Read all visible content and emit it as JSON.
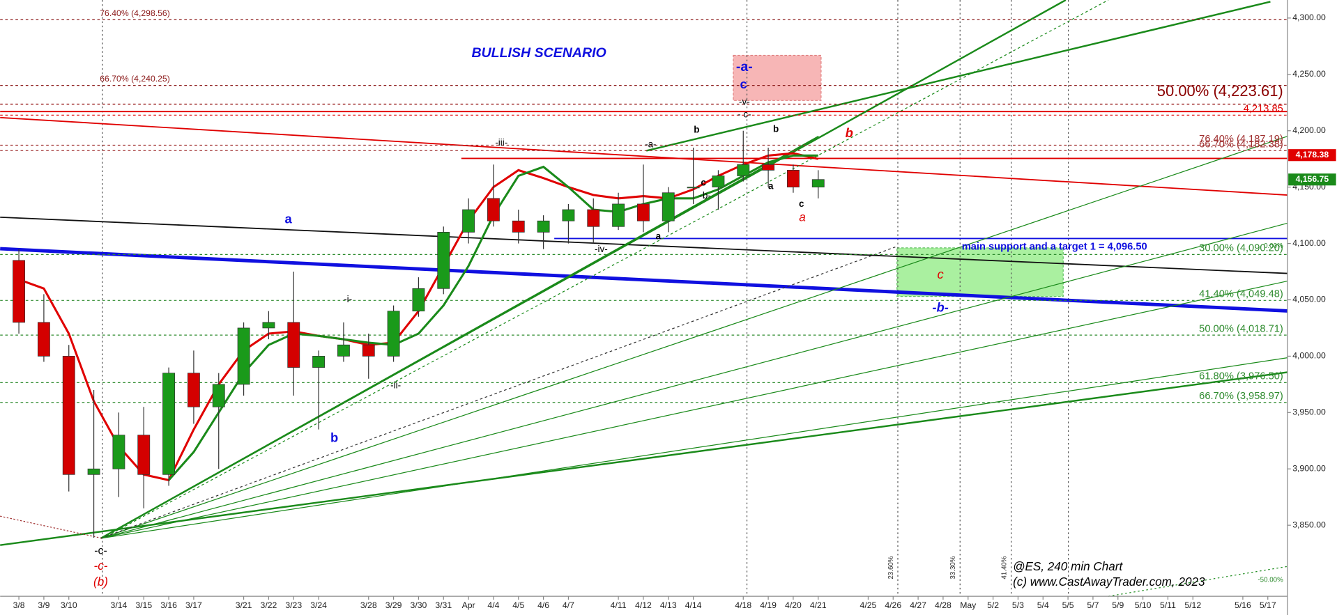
{
  "chart_data": {
    "type": "candlestick",
    "categories": [
      "3/8",
      "3/9",
      "3/10",
      null,
      "3/14",
      "3/15",
      "3/16",
      "3/17",
      null,
      "3/21",
      "3/22",
      "3/23",
      "3/24",
      null,
      "3/28",
      "3/29",
      "3/30",
      "3/31",
      "Apr",
      "4/4",
      "4/5",
      "4/6",
      "4/7",
      null,
      "4/11",
      "4/12",
      "4/13",
      "4/14",
      null,
      "4/18",
      "4/19",
      "4/20",
      "4/21",
      null,
      "4/25",
      "4/26",
      "4/27",
      "4/28",
      "May",
      "5/2",
      "5/3",
      "5/4",
      "5/5",
      "5/7",
      "5/9",
      "5/10",
      "5/11",
      "5/12",
      null,
      "5/16",
      "5/17"
    ],
    "open": [
      4085,
      4030,
      4000,
      3895,
      3900,
      3930,
      3895,
      3985,
      3955,
      3975,
      4025,
      4030,
      3990,
      4000,
      4010,
      4000,
      4040,
      4060,
      4110,
      4140,
      4120,
      4110,
      4120,
      4130,
      4115,
      4135,
      4120,
      4150,
      4150,
      4160,
      4170,
      4165,
      4150,
      null,
      null,
      null,
      null,
      null,
      null,
      null,
      null,
      null,
      null,
      null,
      null,
      null,
      null,
      null,
      null,
      null,
      null
    ],
    "high": [
      4095,
      4055,
      4010,
      3970,
      3950,
      3955,
      3990,
      4005,
      3985,
      4030,
      4040,
      4075,
      4005,
      4030,
      4020,
      4045,
      4070,
      4115,
      4140,
      4170,
      4130,
      4125,
      4135,
      4140,
      4145,
      4170,
      4150,
      4185,
      4165,
      4200,
      4185,
      4170,
      4165,
      null,
      null,
      null,
      null,
      null,
      null,
      null,
      null,
      null,
      null,
      null,
      null,
      null,
      null,
      null,
      null,
      null,
      null
    ],
    "low": [
      4020,
      3995,
      3880,
      3839,
      3875,
      3865,
      3885,
      3940,
      3900,
      3965,
      4015,
      3965,
      3935,
      3995,
      3980,
      3995,
      4035,
      4055,
      4100,
      4115,
      4100,
      4095,
      4100,
      4100,
      4112,
      4110,
      4110,
      4135,
      4130,
      4155,
      4150,
      4145,
      4140,
      null,
      null,
      null,
      null,
      null,
      null,
      null,
      null,
      null,
      null,
      null,
      null,
      null,
      null,
      null,
      null,
      null,
      null
    ],
    "close": [
      4030,
      4000,
      3895,
      3900,
      3930,
      3895,
      3985,
      3955,
      3975,
      4025,
      4030,
      3990,
      4000,
      4010,
      4000,
      4040,
      4060,
      4110,
      4130,
      4120,
      4110,
      4120,
      4130,
      4115,
      4135,
      4120,
      4145,
      4150,
      4160,
      4170,
      4165,
      4150,
      4156.75,
      null,
      null,
      null,
      null,
      null,
      null,
      null,
      null,
      null,
      null,
      null,
      null,
      null,
      null,
      null,
      null,
      null,
      null
    ],
    "up_color": "#1a9a1a",
    "down_color": "#d40000",
    "moving_averages": [
      {
        "color": "#e00000",
        "values": [
          4068,
          4060,
          4020,
          3960,
          3920,
          3895,
          3890,
          3935,
          3975,
          4005,
          4020,
          4022,
          4018,
          4015,
          4010,
          4012,
          4040,
          4080,
          4120,
          4150,
          4165,
          4158,
          4150,
          4143,
          4140,
          4142,
          4140,
          4148,
          4160,
          4170,
          4178,
          4180,
          4175,
          null,
          null,
          null,
          null,
          null,
          null,
          null,
          null,
          null,
          null,
          null,
          null,
          null,
          null,
          null,
          null,
          null,
          null
        ]
      },
      {
        "color": "#1a8a1a",
        "values": [
          null,
          null,
          null,
          null,
          null,
          null,
          3890,
          3915,
          3950,
          3985,
          4010,
          4020,
          4018,
          4015,
          4012,
          4010,
          4020,
          4045,
          4080,
          4125,
          4160,
          4168,
          4150,
          4130,
          4128,
          4135,
          4140,
          4140,
          4148,
          4160,
          4172,
          4178,
          4178,
          null,
          null,
          null,
          null,
          null,
          null,
          null,
          null,
          null,
          null,
          null,
          null,
          null,
          null,
          null,
          null,
          null,
          null
        ]
      }
    ],
    "ylim": [
      3787,
      4316
    ],
    "yticks": [
      {
        "value": 3850,
        "label": "3,850.00"
      },
      {
        "value": 3900,
        "label": "3,900.00"
      },
      {
        "value": 3950,
        "label": "3,950.00"
      },
      {
        "value": 4000,
        "label": "4,000.00"
      },
      {
        "value": 4050,
        "label": "4,050.00"
      },
      {
        "value": 4100,
        "label": "4,100.00"
      },
      {
        "value": 4150,
        "label": "4,150.00"
      },
      {
        "value": 4200,
        "label": "4,200.00"
      },
      {
        "value": 4250,
        "label": "4,250.00"
      },
      {
        "value": 4300,
        "label": "4,300.00"
      }
    ],
    "price_tags": [
      {
        "value": 4178.38,
        "label": "4,178.38",
        "color": "#e00000"
      },
      {
        "value": 4156.75,
        "label": "4,156.75",
        "color": "#1a8a1a"
      }
    ],
    "levels": [
      {
        "label": "76.40% (4,298.56)",
        "value": 4298.56,
        "color": "#8b1a1a"
      },
      {
        "label": "66.70% (4,240.25)",
        "value": 4240.25,
        "color": "#8b1a1a"
      },
      {
        "label": "50.00% (4,223.61)",
        "value": 4223.61,
        "color": "#8b0000"
      },
      {
        "label": "4,213.85",
        "value": 4213.85,
        "color": "#e00000"
      },
      {
        "label": "76.40% (4,187.19)",
        "value": 4187.19,
        "color": "#a03030"
      },
      {
        "label": "66.70% (4,182.38)",
        "value": 4182.38,
        "color": "#a03030"
      },
      {
        "label": "30.00% (4,090.20)",
        "value": 4090.2,
        "color": "#2e8b2e"
      },
      {
        "label": "41.40% (4,049.48)",
        "value": 4049.48,
        "color": "#2e8b2e"
      },
      {
        "label": "50.00% (4,018.71)",
        "value": 4018.71,
        "color": "#2e8b2e"
      },
      {
        "label": "61.80% (3,976.50)",
        "value": 3976.5,
        "color": "#2e8b2e"
      },
      {
        "label": "66.70% (3,958.97)",
        "value": 3958.97,
        "color": "#2e8b2e"
      }
    ]
  },
  "annotations": [
    "BULLISH SCENARIO",
    "-iii-",
    "-a-",
    "b",
    "b",
    "-i-",
    "-ii-",
    "-iv-",
    "a",
    "c",
    "-b-",
    "a",
    "c",
    "a",
    "b",
    "-a-",
    "c",
    "-v-",
    "- c-",
    "a",
    "b",
    "-c-",
    "-c-",
    "(b)",
    "c",
    "-b-",
    "main support and a target 1 = 4,096.50",
    "@ES, 240 min Chart",
    "(c) www.CastAwayTrader.com, 2023",
    "23.60%",
    "33.30%",
    "41.40%",
    "0.00%",
    "-50.00%"
  ]
}
